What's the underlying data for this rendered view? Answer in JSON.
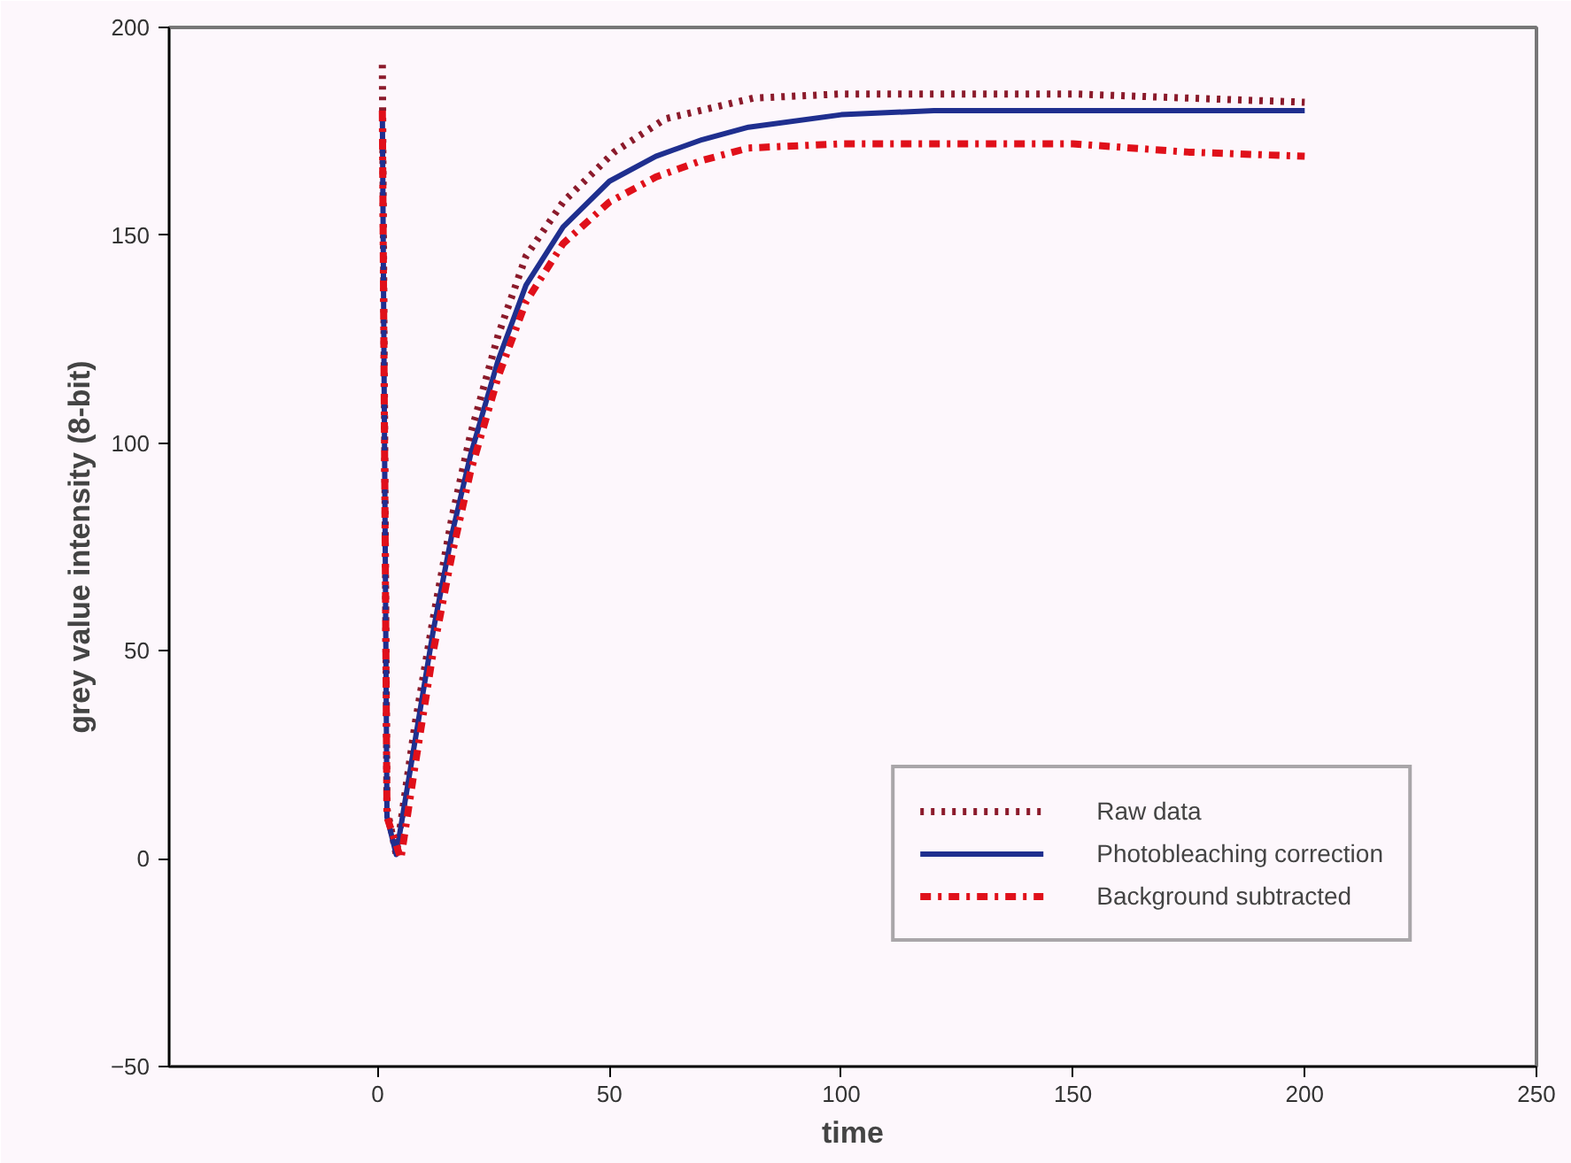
{
  "chart_data": {
    "type": "line",
    "xlabel": "time",
    "ylabel": "grey value intensity (8-bit)",
    "xlim": [
      -45,
      250
    ],
    "xticks": [
      0,
      50,
      100,
      150,
      200,
      250
    ],
    "ylim": [
      -50,
      200
    ],
    "yticks": [
      -50,
      0,
      50,
      100,
      150,
      200
    ],
    "grid": false,
    "legend": "bottom right",
    "series": [
      {
        "name": "Raw data",
        "color": "#8b1a2b",
        "line_style": "dotted",
        "x": [
          1,
          2,
          4,
          8,
          12,
          16,
          20,
          26,
          32,
          40,
          51,
          62,
          81,
          100,
          120,
          150,
          175,
          200
        ],
        "values": [
          191,
          12,
          1,
          32,
          58,
          82,
          102,
          126,
          145,
          158,
          170,
          178,
          183,
          184,
          184,
          184,
          183,
          182
        ]
      },
      {
        "name": "Photobleaching correction",
        "color": "#1f2f8f",
        "line_style": "solid",
        "x": [
          1,
          2,
          4,
          8,
          12,
          16,
          20,
          26,
          32,
          40,
          50,
          60,
          70,
          80,
          100,
          120,
          150,
          175,
          200
        ],
        "values": [
          180,
          10,
          1,
          28,
          55,
          78,
          97,
          120,
          138,
          152,
          163,
          169,
          173,
          176,
          179,
          180,
          180,
          180,
          180
        ]
      },
      {
        "name": "Background subtracted",
        "color": "#e0101a",
        "line_style": "dashdot",
        "x": [
          1,
          2,
          5,
          8,
          12,
          16,
          20,
          26,
          32,
          40,
          50,
          60,
          70,
          80,
          100,
          120,
          150,
          175,
          200
        ],
        "values": [
          180,
          10,
          0,
          22,
          50,
          73,
          93,
          116,
          134,
          148,
          158,
          164,
          168,
          171,
          172,
          172,
          172,
          170,
          169
        ]
      }
    ]
  }
}
